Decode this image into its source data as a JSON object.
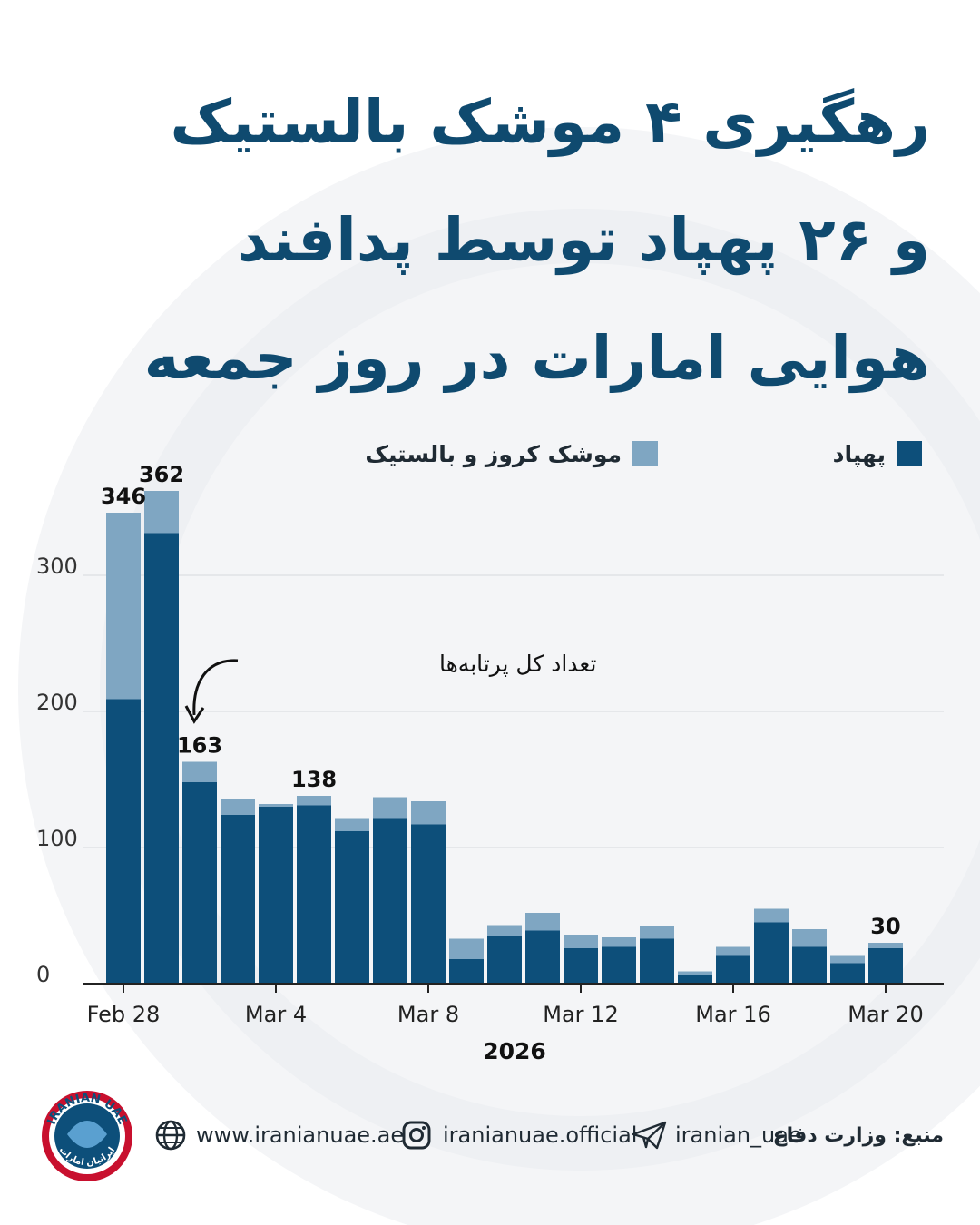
{
  "headline": {
    "line1": "رهگیری ۴ موشک بالستیک",
    "line2": "و ۲۶ پهپاد توسط پدافند",
    "line3": "هوایی امارات در روز جمعه"
  },
  "legend": {
    "drones": "پهپاد",
    "missiles": "موشک کروز و بالستیک"
  },
  "annotation": "تعداد کل پرتابه‌ها",
  "colors": {
    "drones": "#0d4f7a",
    "missiles": "#7fa6c2",
    "title": "#0f4a6f"
  },
  "chart_data": {
    "type": "bar",
    "stacked": true,
    "x": [
      "Feb 28",
      "Mar 1",
      "Mar 2",
      "Mar 3",
      "Mar 4",
      "Mar 5",
      "Mar 6",
      "Mar 7",
      "Mar 8",
      "Mar 9",
      "Mar 10",
      "Mar 11",
      "Mar 12",
      "Mar 13",
      "Mar 14",
      "Mar 15",
      "Mar 16",
      "Mar 17",
      "Mar 18",
      "Mar 19",
      "Mar 20"
    ],
    "series": [
      {
        "name": "پهپاد",
        "values": [
          209,
          331,
          148,
          124,
          130,
          131,
          112,
          121,
          117,
          18,
          35,
          39,
          26,
          27,
          33,
          6,
          21,
          45,
          27,
          15,
          26
        ]
      },
      {
        "name": "موشک کروز و بالستیک",
        "values": [
          137,
          31,
          15,
          12,
          2,
          7,
          9,
          16,
          17,
          15,
          8,
          13,
          10,
          7,
          9,
          3,
          6,
          10,
          13,
          6,
          4
        ]
      }
    ],
    "totals_labeled": [
      {
        "x": "Feb 28",
        "total": "346"
      },
      {
        "x": "Mar 1",
        "total": "362"
      },
      {
        "x": "Mar 2",
        "total": "163"
      },
      {
        "x": "Mar 5",
        "total": "138"
      },
      {
        "x": "Mar 20",
        "total": "30"
      }
    ],
    "xticks": [
      "Feb 28",
      "Mar 4",
      "Mar 8",
      "Mar 12",
      "Mar 16",
      "Mar 20"
    ],
    "yticks": [
      "0",
      "100",
      "200",
      "300"
    ],
    "xlabel": "2026",
    "ylabel": "",
    "ylim": [
      0,
      370
    ],
    "grid": true,
    "legend_position": "top"
  },
  "footer": {
    "website": "www.iranianuae.ae",
    "instagram": "iranianuae.official",
    "telegram": "iranian_uae",
    "source": "منبع: وزارت دفاع",
    "logo_text_top": "IRANIAN UAE",
    "logo_text_bottom": "ایرانیان امارات"
  }
}
